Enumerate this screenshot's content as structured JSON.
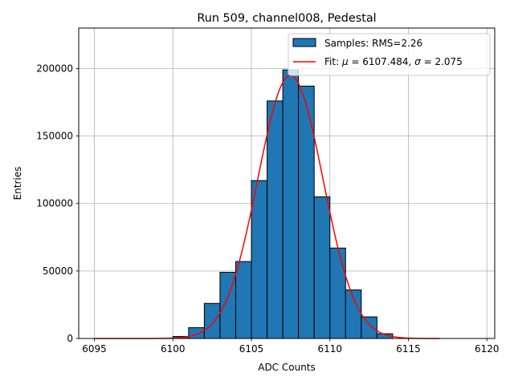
{
  "chart_data": {
    "type": "bar",
    "title": "Run 509, channel008, Pedestal",
    "xlabel": "ADC Counts",
    "ylabel": "Entries",
    "xlim": [
      6094,
      6120.5
    ],
    "ylim": [
      0,
      230000
    ],
    "xticks": [
      6095,
      6100,
      6105,
      6110,
      6115,
      6120
    ],
    "yticks": [
      0,
      50000,
      100000,
      150000,
      200000
    ],
    "grid": true,
    "legend_position": "top-right",
    "histogram": {
      "name": "Samples: RMS=2.26",
      "color": "#1f77b4",
      "bin_edges": [
        6100,
        6101,
        6102,
        6103,
        6104,
        6105,
        6106,
        6107,
        6108,
        6109,
        6110,
        6111,
        6112,
        6113,
        6114
      ],
      "counts": [
        1500,
        8000,
        26000,
        49000,
        57000,
        117000,
        176000,
        199000,
        187000,
        105000,
        67000,
        36000,
        16000,
        3500
      ]
    },
    "fit": {
      "name_prefix": "Fit: ",
      "mu_symbol": "μ",
      "sigma_symbol": "σ",
      "mu": "6107.484",
      "sigma": "2.075",
      "amplitude": 195000,
      "x_range": [
        6095,
        6117
      ],
      "color": "#ff0000"
    }
  }
}
